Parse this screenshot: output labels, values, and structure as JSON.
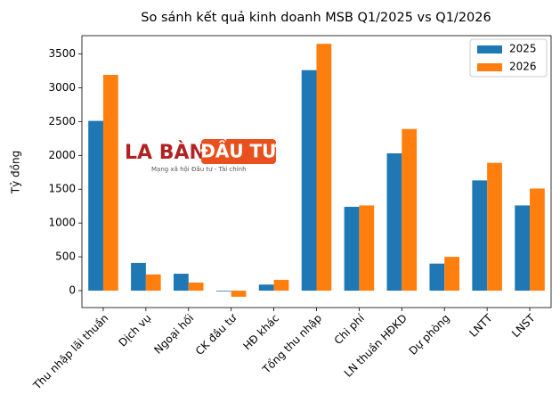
{
  "chart_data": {
    "type": "bar",
    "title": "So sánh kết quả kinh doanh MSB Q1/2025 vs Q1/2026",
    "y_label": "Tỷ đồng",
    "categories": [
      "Thu nhập lãi thuần",
      "Dịch vụ",
      "Ngoại hối",
      "CK đầu tư",
      "HĐ khác",
      "Tổng thu nhập",
      "Chi phí",
      "LN thuần HĐKD",
      "Dự phòng",
      "LNTT",
      "LNST"
    ],
    "series": [
      {
        "name": "2025",
        "color": "#1f77b4",
        "values": [
          2510,
          410,
          250,
          -10,
          90,
          3260,
          1240,
          2030,
          400,
          1630,
          1260
        ]
      },
      {
        "name": "2026",
        "color": "#ff7f0e",
        "values": [
          3190,
          240,
          120,
          -90,
          160,
          3650,
          1260,
          2390,
          500,
          1890,
          1510
        ]
      }
    ],
    "ylim": [
      -250,
      3770
    ],
    "yticks": [
      0,
      500,
      1000,
      1500,
      2000,
      2500,
      3000,
      3500
    ],
    "grid": false,
    "legend": "upper right",
    "watermark": {
      "brand_left": "LA BÀN",
      "brand_right": "ĐẦU TƯ",
      "tagline": "Mạng xã hội Đầu tư - Tài chính"
    }
  }
}
